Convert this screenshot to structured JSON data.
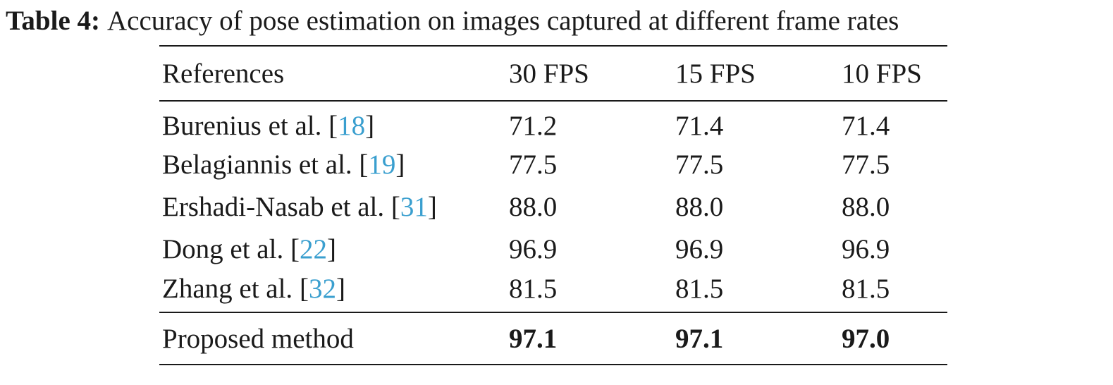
{
  "caption": {
    "label": "Table 4:",
    "text": "Accuracy of pose estimation on images captured at different frame rates"
  },
  "table": {
    "headers": [
      "References",
      "30 FPS",
      "15 FPS",
      "10 FPS"
    ],
    "rows": [
      {
        "name": "Burenius et al.",
        "ref": "18",
        "values": [
          "71.2",
          "71.4",
          "71.4"
        ]
      },
      {
        "name": "Belagiannis et al.",
        "ref": "19",
        "values": [
          "77.5",
          "77.5",
          "77.5"
        ]
      },
      {
        "name": "Ershadi-Nasab et al.",
        "ref": "31",
        "values": [
          "88.0",
          "88.0",
          "88.0"
        ]
      },
      {
        "name": "Dong et al.",
        "ref": "22",
        "values": [
          "96.9",
          "96.9",
          "96.9"
        ]
      },
      {
        "name": "Zhang et al.",
        "ref": "32",
        "values": [
          "81.5",
          "81.5",
          "81.5"
        ]
      }
    ],
    "proposed": {
      "name": "Proposed method",
      "values": [
        "97.1",
        "97.1",
        "97.0"
      ]
    },
    "cite_color": "#3a9fcf"
  }
}
